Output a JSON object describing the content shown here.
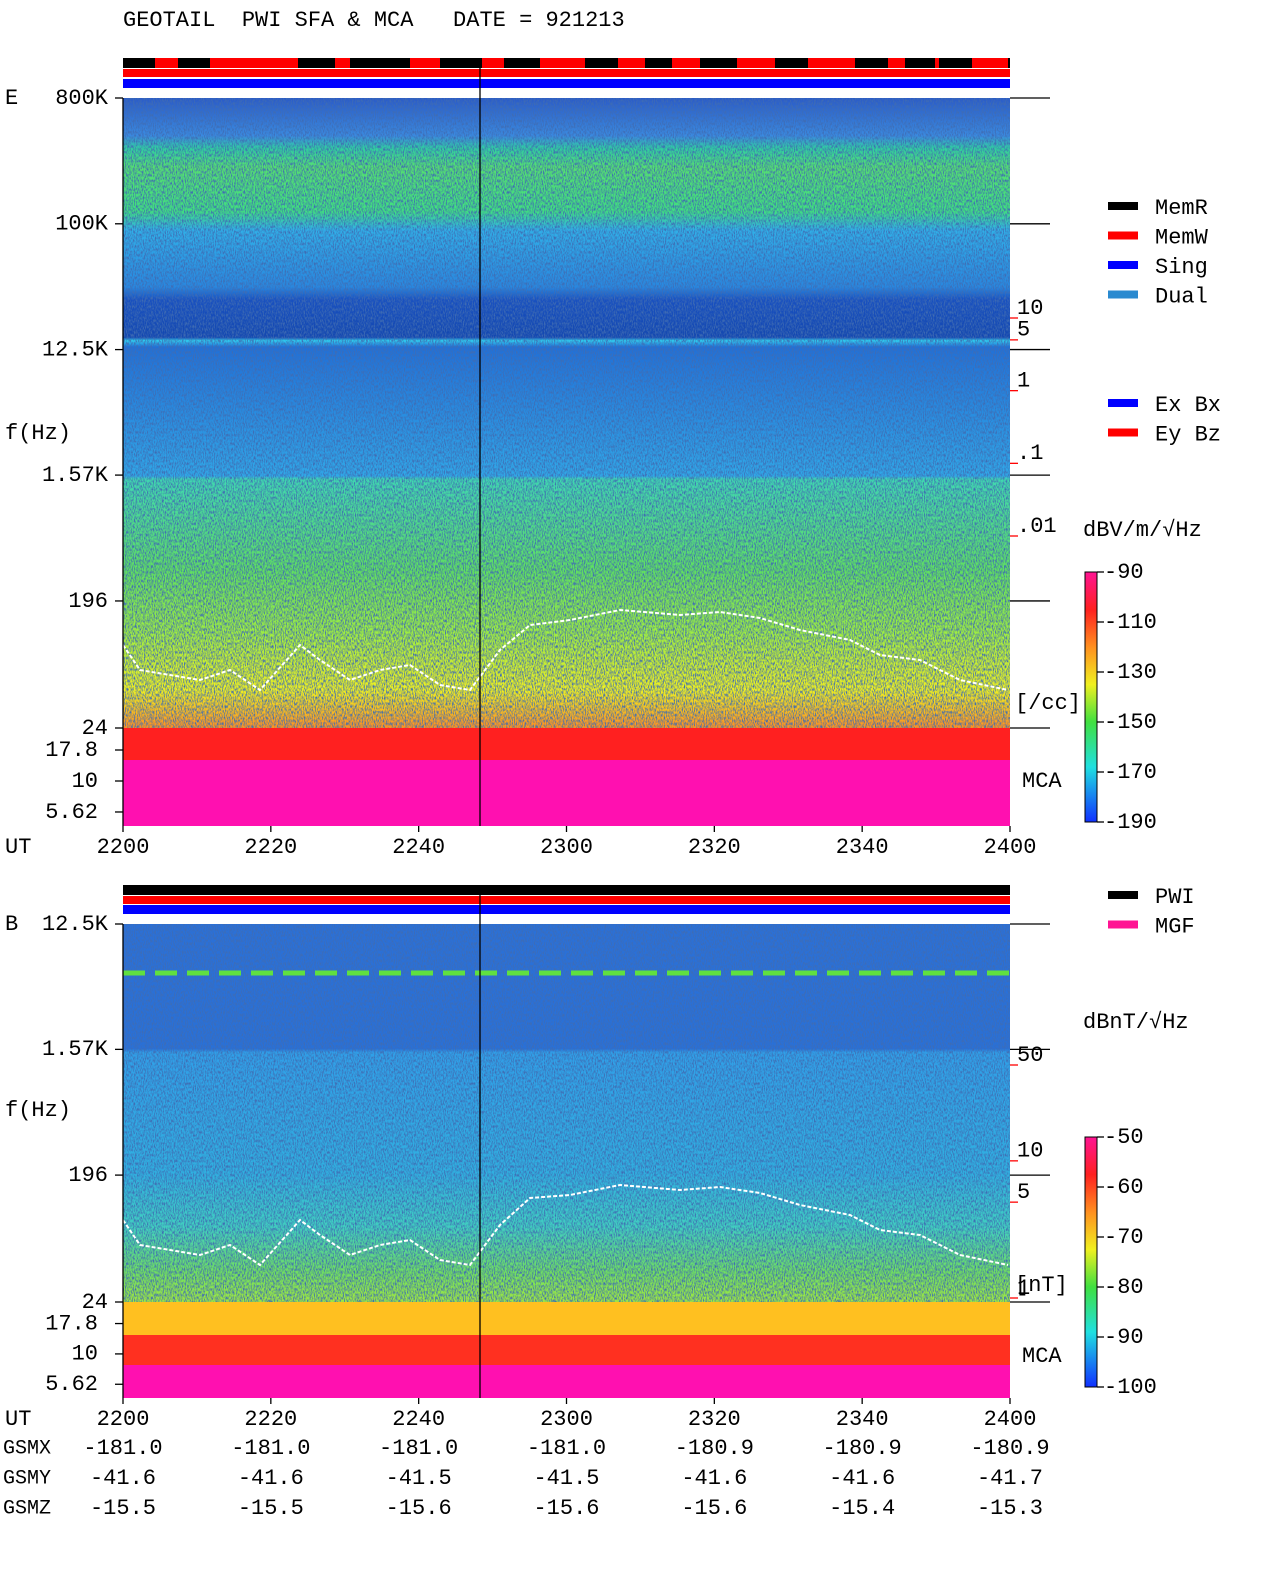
{
  "chart_data": [
    {
      "type": "spectrogram",
      "title": "GEOTAIL  PWI SFA & MCA   DATE = 921213",
      "component": "E",
      "ylabel": "f(Hz)",
      "xlabel": "UT",
      "log_y": true,
      "ylim": [
        24,
        800000
      ],
      "yticks": [
        {
          "value": 800000,
          "label": "800K"
        },
        {
          "value": 100000,
          "label": "100K"
        },
        {
          "value": 12500,
          "label": "12.5K"
        },
        {
          "value": 1570,
          "label": "1.57K"
        },
        196,
        24
      ],
      "mca_label": "MCA",
      "mca_ylim": [
        4.33,
        26.8
      ],
      "mca_yticks": [
        17.8,
        10,
        5.62
      ],
      "categories": [
        "2200",
        "2220",
        "2240",
        "2300",
        "2320",
        "2340",
        "2400"
      ],
      "colorbar": {
        "label": "dBV/m/√Hz",
        "ylim": [
          -190,
          -90
        ],
        "ticks": [
          -90,
          -110,
          -130,
          -150,
          -170,
          -190
        ]
      },
      "density_axis": {
        "label": "[/cc]",
        "color": "#ff0000",
        "ylim": [
          0.01,
          10
        ],
        "ticks": [
          10,
          5,
          1,
          {
            "value": 0.1,
            "label": ".1"
          },
          {
            "value": 0.01,
            "label": ".01"
          }
        ]
      },
      "legends": [
        [
          {
            "name": "MemR",
            "color": "#000000"
          },
          {
            "name": "MemW",
            "color": "#ff0000"
          },
          {
            "name": "Sing",
            "color": "#0000ff"
          },
          {
            "name": "Dual",
            "color": "#2a8ad0"
          }
        ],
        [
          {
            "name": "Ex Bx",
            "color": "#0000ff"
          },
          {
            "name": "Ey Bz",
            "color": "#ff0000"
          }
        ]
      ]
    },
    {
      "type": "spectrogram",
      "component": "B",
      "ylabel": "f(Hz)",
      "xlabel": "UT",
      "log_y": true,
      "ylim": [
        24,
        12500
      ],
      "yticks": [
        {
          "value": 12500,
          "label": "12.5K"
        },
        {
          "value": 1570,
          "label": "1.57K"
        },
        196,
        24
      ],
      "mca_label": "MCA",
      "mca_ylim": [
        4.33,
        26.8
      ],
      "mca_yticks": [
        17.8,
        10,
        5.62
      ],
      "categories": [
        "2200",
        "2220",
        "2240",
        "2300",
        "2320",
        "2340",
        "2400"
      ],
      "colorbar": {
        "label": "dBnT/√Hz",
        "ylim": [
          -100,
          -50
        ],
        "ticks": [
          -50,
          -60,
          -70,
          -80,
          -90,
          -100
        ]
      },
      "density_axis": {
        "label": "[nT]",
        "color": "#ff0000",
        "ylim": [
          1,
          50
        ],
        "ticks": [
          50,
          10,
          5,
          1
        ]
      },
      "legends": [
        [
          {
            "name": "PWI",
            "color": "#000000"
          },
          {
            "name": "MGF",
            "color": "#ff1493"
          }
        ]
      ],
      "orbit": [
        {
          "name": "GSMX",
          "values": [
            -181.0,
            -181.0,
            -181.0,
            -181.0,
            -180.9,
            -180.9,
            -180.9
          ],
          "value_labels": [
            "-181.0",
            "-181.0",
            "-181.0",
            "-181.0",
            "-180.9",
            "-180.9",
            "-180.9"
          ]
        },
        {
          "name": "GSMY",
          "values": [
            -41.6,
            -41.6,
            -41.5,
            -41.5,
            -41.6,
            -41.6,
            -41.7
          ],
          "value_labels": [
            "-41.6",
            "-41.6",
            "-41.5",
            "-41.5",
            "-41.6",
            "-41.6",
            "-41.7"
          ]
        },
        {
          "name": "GSMZ",
          "values": [
            -15.5,
            -15.5,
            -15.6,
            -15.6,
            -15.6,
            -15.4,
            -15.3
          ],
          "value_labels": [
            "-15.5",
            "-15.5",
            "-15.6",
            "-15.6",
            "-15.6",
            "-15.4",
            "-15.3"
          ]
        }
      ]
    }
  ]
}
